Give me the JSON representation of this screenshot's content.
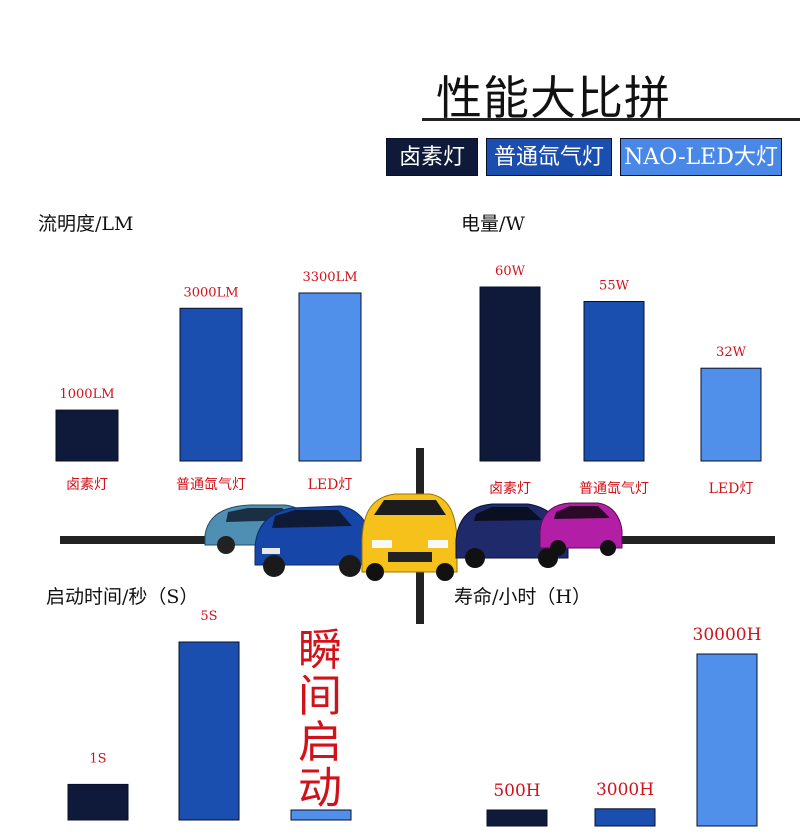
{
  "title": "性能大比拼",
  "legend": [
    {
      "label": "卤素灯",
      "color": "#0f1a3a"
    },
    {
      "label": "普通氙气灯",
      "color": "#1a4fb0"
    },
    {
      "label": "NAO-LED大灯",
      "color": "#4a88e8"
    }
  ],
  "colors": {
    "dark": "#0f1a3a",
    "mid": "#1a4fb0",
    "light": "#5090ea",
    "red": "#d0121b"
  },
  "chart_data": [
    {
      "type": "bar",
      "title": "流明度/LM",
      "categories": [
        "卤素灯",
        "普通氙气灯",
        "LED灯"
      ],
      "values": [
        1000,
        3000,
        3300
      ],
      "labels": [
        "1000LM",
        "3000LM",
        "3300LM"
      ]
    },
    {
      "type": "bar",
      "title": "电量/W",
      "categories": [
        "卤素灯",
        "普通氙气灯",
        "LED灯"
      ],
      "values": [
        60,
        55,
        32
      ],
      "labels": [
        "60W",
        "55W",
        "32W"
      ]
    },
    {
      "type": "bar",
      "title": "启动时间/秒（S）",
      "categories": [
        "",
        "",
        ""
      ],
      "values": [
        1,
        5,
        0
      ],
      "labels": [
        "1S",
        "5S",
        ""
      ],
      "annotation": "瞬间启动"
    },
    {
      "type": "bar",
      "title": "寿命/小时（H）",
      "categories": [
        "",
        "",
        ""
      ],
      "values": [
        500,
        3000,
        30000
      ],
      "labels": [
        "500H",
        "3000H",
        "30000H"
      ]
    }
  ]
}
